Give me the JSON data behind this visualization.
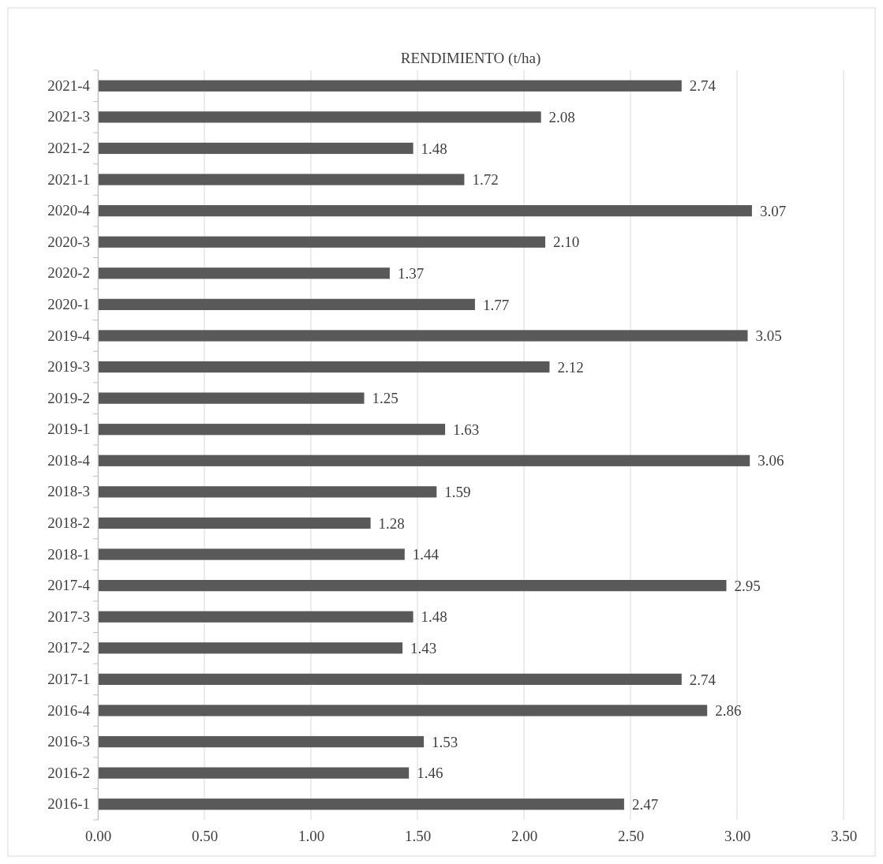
{
  "chart_data": {
    "type": "bar",
    "orientation": "horizontal",
    "title": "RENDIMIENTO (t/ha)",
    "categories": [
      "2021-4",
      "2021-3",
      "2021-2",
      "2021-1",
      "2020-4",
      "2020-3",
      "2020-2",
      "2020-1",
      "2019-4",
      "2019-3",
      "2019-2",
      "2019-1",
      "2018-4",
      "2018-3",
      "2018-2",
      "2018-1",
      "2017-4",
      "2017-3",
      "2017-2",
      "2017-1",
      "2016-4",
      "2016-3",
      "2016-2",
      "2016-1"
    ],
    "values": [
      2.74,
      2.08,
      1.48,
      1.72,
      3.07,
      2.1,
      1.37,
      1.77,
      3.05,
      2.12,
      1.25,
      1.63,
      3.06,
      1.59,
      1.28,
      1.44,
      2.95,
      1.48,
      1.43,
      2.74,
      2.86,
      1.53,
      1.46,
      2.47
    ],
    "value_labels": [
      "2.74",
      "2.08",
      "1.48",
      "1.72",
      "3.07",
      "2.10",
      "1.37",
      "1.77",
      "3.05",
      "2.12",
      "1.25",
      "1.63",
      "3.06",
      "1.59",
      "1.28",
      "1.44",
      "2.95",
      "1.48",
      "1.43",
      "2.74",
      "2.86",
      "1.53",
      "1.46",
      "2.47"
    ],
    "color": "#595959",
    "xlim": [
      0,
      3.5
    ],
    "xticks": [
      {
        "value": 0,
        "label": "0.00"
      },
      {
        "value": 0.5,
        "label": "0.50"
      },
      {
        "value": 1,
        "label": "1.00"
      },
      {
        "value": 1.5,
        "label": "1.50"
      },
      {
        "value": 2,
        "label": "2.00"
      },
      {
        "value": 2.5,
        "label": "2.50"
      },
      {
        "value": 3,
        "label": "3.00"
      },
      {
        "value": 3.5,
        "label": "3.50"
      }
    ],
    "grid": "x"
  }
}
